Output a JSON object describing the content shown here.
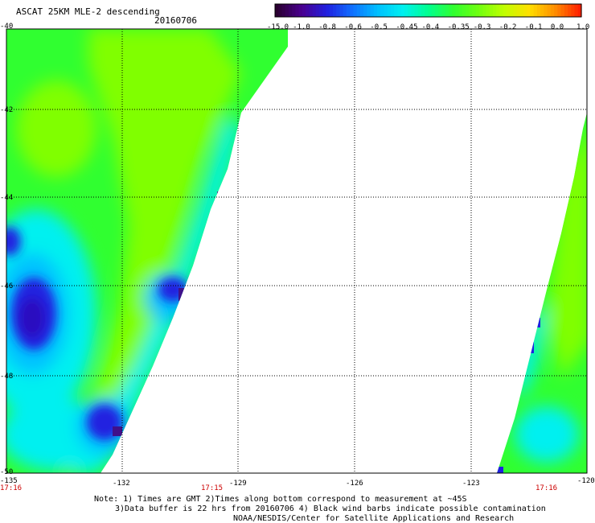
{
  "header": {
    "title": "ASCAT 25KM MLE-2 descending",
    "date": "20160706"
  },
  "colorbar": {
    "labels": [
      "-15.0",
      "-1.0",
      "-0.8",
      "-0.6",
      "-0.5",
      "-0.45",
      "-0.4",
      "-0.35",
      "-0.3",
      "-0.2",
      "-0.1",
      "0.0",
      "1.0"
    ],
    "colors": [
      "#2a0030",
      "#4a0090",
      "#2020e0",
      "#1070ff",
      "#00c0ff",
      "#00f0f0",
      "#00ff90",
      "#30ff30",
      "#70ff10",
      "#c0ff00",
      "#ffe000",
      "#ff9000",
      "#ff2000"
    ]
  },
  "map": {
    "lon_labels": [
      "-135",
      "-132",
      "-129",
      "-126",
      "-123",
      "-120"
    ],
    "lat_labels": [
      "-40",
      "-42",
      "-44",
      "-46",
      "-48",
      "-50"
    ],
    "time_labels": [
      "17:16",
      "17:15",
      "17:16"
    ],
    "colors": {
      "grid": "#000000",
      "time_text": "#cc0000",
      "swath_green": "#30ff30",
      "swath_lime": "#80ff00",
      "swath_cyan": "#00f0f0",
      "swath_lightblue": "#00c0ff",
      "swath_blue": "#2020e0",
      "swath_navy": "#2a10c0",
      "swath_purple": "#40108a"
    }
  },
  "footer": {
    "line1": "Note: 1) Times are GMT 2)Times along bottom correspond to measurement at ~45S",
    "line2": "3)Data buffer is 22 hrs from 20160706 4) Black wind barbs indicate possible contamination",
    "line3": "NOAA/NESDIS/Center for Satellite Applications and Research"
  }
}
